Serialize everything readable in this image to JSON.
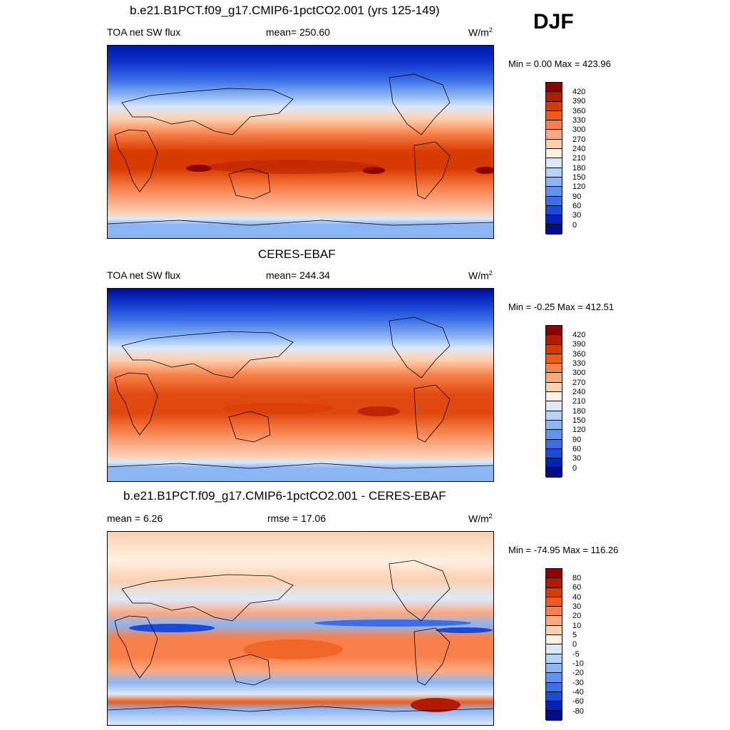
{
  "season": "DJF",
  "panels": [
    {
      "title": "b.e21.B1PCT.f09_g17.CMIP6-1pctCO2.001 (yrs 125-149)",
      "left_label": "TOA net SW flux",
      "center_label": "mean= 250.60",
      "unit_base": "W/m",
      "unit_exp": "2",
      "minmax": "Min =   0.00 Max = 423.96",
      "colorbar_labels": [
        "420",
        "390",
        "360",
        "330",
        "300",
        "270",
        "240",
        "210",
        "180",
        "150",
        "120",
        "90",
        "60",
        "30",
        "0"
      ],
      "colorbar_colors": [
        "#8b0000",
        "#b31b00",
        "#d83a00",
        "#f05a1a",
        "#f8804a",
        "#fca880",
        "#fdd0b0",
        "#fff0e0",
        "#dce9fb",
        "#b6d2f8",
        "#8cb5f3",
        "#5f93ee",
        "#3a6fe8",
        "#1a4ad8",
        "#0022b8",
        "#000c8c"
      ]
    },
    {
      "title": "CERES-EBAF",
      "left_label": "TOA net SW flux",
      "center_label": "mean= 244.34",
      "unit_base": "W/m",
      "unit_exp": "2",
      "minmax": "Min =  -0.25 Max = 412.51",
      "colorbar_labels": [
        "420",
        "390",
        "360",
        "330",
        "300",
        "270",
        "240",
        "210",
        "180",
        "150",
        "120",
        "90",
        "60",
        "30",
        "0"
      ],
      "colorbar_colors": [
        "#8b0000",
        "#b31b00",
        "#d83a00",
        "#f05a1a",
        "#f8804a",
        "#fca880",
        "#fdd0b0",
        "#fff0e0",
        "#dce9fb",
        "#b6d2f8",
        "#8cb5f3",
        "#5f93ee",
        "#3a6fe8",
        "#1a4ad8",
        "#0022b8",
        "#000c8c"
      ]
    },
    {
      "title": "b.e21.B1PCT.f09_g17.CMIP6-1pctCO2.001 - CERES-EBAF",
      "left_label": "mean =   6.26",
      "center_label": "rmse =  17.06",
      "unit_base": "W/m",
      "unit_exp": "2",
      "minmax": "Min = -74.95 Max = 116.26",
      "colorbar_labels": [
        "80",
        "60",
        "40",
        "30",
        "20",
        "10",
        "5",
        "0",
        "-5",
        "-10",
        "-20",
        "-30",
        "-40",
        "-60",
        "-80"
      ],
      "colorbar_colors": [
        "#8b0000",
        "#b31b00",
        "#d83a00",
        "#f05a1a",
        "#f8804a",
        "#fca880",
        "#fdd0b0",
        "#fff0e0",
        "#dce9fb",
        "#b6d2f8",
        "#8cb5f3",
        "#5f93ee",
        "#3a6fe8",
        "#1a4ad8",
        "#0022b8",
        "#000c8c"
      ]
    }
  ]
}
